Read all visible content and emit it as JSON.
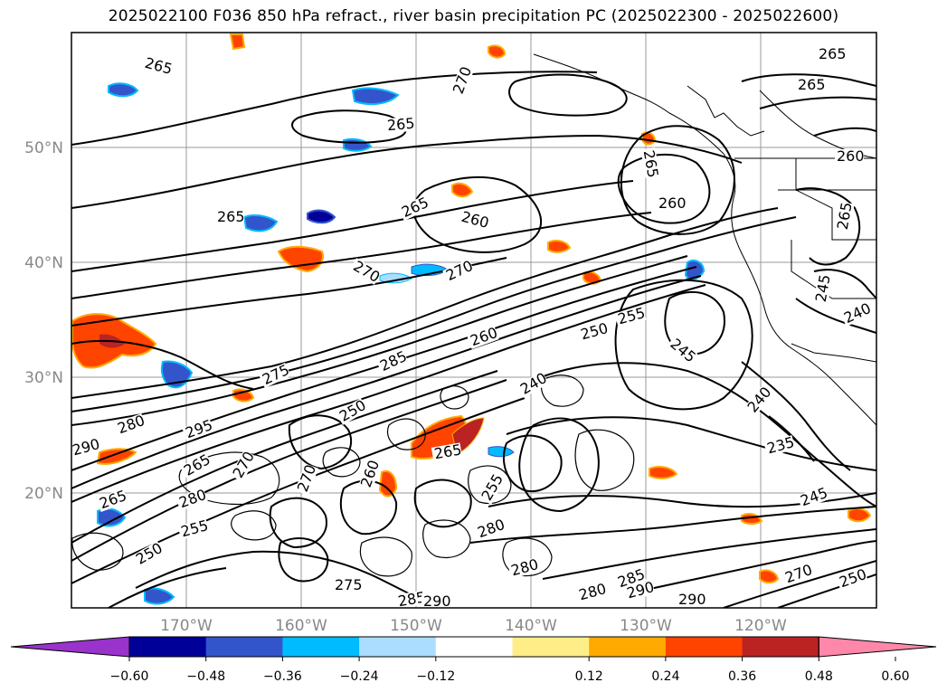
{
  "title": "2025022100 F036 850 hPa refract., river basin precipitation PC (2025022300 - 2025022600)",
  "lat_labels": [
    "50°N",
    "40°N",
    "30°N",
    "20°N"
  ],
  "lon_labels": [
    "170°W",
    "160°W",
    "150°W",
    "140°W",
    "130°W",
    "120°W"
  ],
  "contour_labels": [
    "265",
    "265",
    "270",
    "265",
    "265",
    "265",
    "265",
    "260",
    "265",
    "260",
    "260",
    "270",
    "270",
    "265",
    "275",
    "285",
    "260",
    "250",
    "255",
    "245",
    "240",
    "240",
    "235",
    "245",
    "280",
    "290",
    "295",
    "265",
    "270",
    "280",
    "250",
    "270",
    "255",
    "265",
    "280",
    "280",
    "285",
    "290",
    "280",
    "285",
    "290",
    "290",
    "275",
    "250",
    "255",
    "260",
    "265",
    "270",
    "250",
    "245",
    "240"
  ],
  "colorbar": {
    "ticks": [
      "−0.60",
      "−0.48",
      "−0.36",
      "−0.24",
      "−0.12",
      "0.12",
      "0.24",
      "0.36",
      "0.48",
      "0.60"
    ],
    "colors": [
      "#9933cc",
      "#000099",
      "#3355cc",
      "#00bbff",
      "#aaddff",
      "#ffffff",
      "#ffee88",
      "#ffaa00",
      "#ff4400",
      "#bb2222",
      "#ff88aa"
    ]
  }
}
